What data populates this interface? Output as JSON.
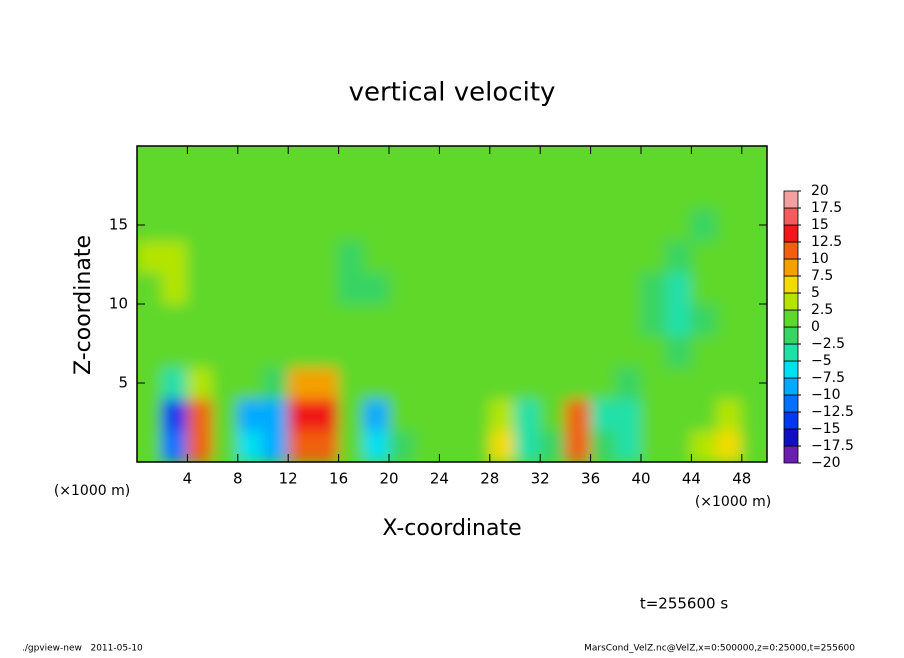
{
  "chart_data": {
    "type": "contour",
    "title": "vertical velocity",
    "x_label": "X-coordinate",
    "y_label": "Z-coordinate",
    "x_unit": "(×1000 m)",
    "x_unit_right": "(×1000 m)",
    "time_label": "t=255600 s",
    "footer_left": "./gpview-new   2011-05-10",
    "footer_right": "MarsCond_VelZ.nc@VelZ,x=0:500000,z=0:25000,t=255600",
    "xlim": [
      0,
      50
    ],
    "ylim": [
      0,
      20
    ],
    "xticks": [
      4,
      8,
      12,
      16,
      20,
      24,
      28,
      32,
      36,
      40,
      44,
      48
    ],
    "yticks": [
      5,
      10,
      15
    ],
    "x": [
      1,
      3,
      5,
      7,
      9,
      11,
      13,
      15,
      17,
      19,
      21,
      23,
      25,
      27,
      29,
      31,
      33,
      35,
      37,
      39,
      41,
      43,
      45,
      47,
      49
    ],
    "y": [
      1,
      3,
      5,
      7,
      9,
      11,
      13,
      15,
      17,
      19
    ],
    "z": [
      [
        0,
        -12,
        10,
        0,
        -6,
        -8,
        11,
        11,
        0,
        -6,
        -2,
        1,
        1,
        1,
        5,
        -4,
        -2,
        10,
        -2,
        -3,
        1,
        1,
        3,
        5,
        1
      ],
      [
        1,
        -13,
        11,
        1,
        -9,
        -9,
        13,
        13,
        1,
        -10,
        1,
        1,
        1,
        1,
        3,
        -3,
        1,
        11,
        -4,
        -4,
        1,
        1,
        1,
        3,
        1
      ],
      [
        1,
        -3,
        3,
        1,
        1,
        -2,
        8,
        8,
        1,
        1,
        1,
        1,
        1,
        1,
        1,
        1,
        1,
        2,
        1,
        -2,
        1,
        1,
        1,
        1,
        1
      ],
      [
        1,
        1,
        1,
        1,
        1,
        1,
        1,
        1,
        1,
        1,
        1,
        1,
        1,
        1,
        1,
        1,
        1,
        1,
        1,
        1,
        1,
        -1,
        1,
        1,
        1
      ],
      [
        1,
        1,
        1,
        1,
        1,
        1,
        1,
        1,
        1,
        1,
        1,
        1,
        1,
        1,
        1,
        1,
        1,
        1,
        1,
        1,
        -2,
        -3,
        -2,
        1,
        1
      ],
      [
        1,
        3,
        1,
        1,
        1,
        1,
        1,
        1,
        -1,
        -1,
        1,
        1,
        1,
        1,
        1,
        1,
        1,
        1,
        1,
        1,
        -1,
        -3,
        1,
        1,
        1
      ],
      [
        3,
        3,
        1,
        1,
        1,
        1,
        1,
        1,
        -1,
        1,
        1,
        1,
        1,
        1,
        1,
        1,
        1,
        1,
        1,
        1,
        1,
        -2,
        1,
        1,
        1
      ],
      [
        2,
        1,
        1,
        1,
        1,
        1,
        1,
        1,
        1,
        1,
        1,
        1,
        1,
        1,
        1,
        1,
        1,
        1,
        1,
        1,
        1,
        1,
        -1,
        1,
        1
      ],
      [
        1,
        1,
        1,
        1,
        1,
        1,
        1,
        1,
        1,
        1,
        1,
        1,
        1,
        1,
        1,
        1,
        1,
        1,
        1,
        1,
        1,
        1,
        1,
        2,
        1
      ],
      [
        1,
        1,
        1,
        1,
        1,
        1,
        1,
        1,
        1,
        1,
        1,
        1,
        1,
        1,
        1,
        1,
        1,
        1,
        1,
        1,
        1,
        1,
        1,
        1,
        1
      ]
    ],
    "colorbar": {
      "levels": [
        {
          "value": -20,
          "label": "−20"
        },
        {
          "value": -17.5,
          "label": "−17.5"
        },
        {
          "value": -15,
          "label": "−15"
        },
        {
          "value": -12.5,
          "label": "−12.5"
        },
        {
          "value": -10,
          "label": "−10"
        },
        {
          "value": -7.5,
          "label": "−7.5"
        },
        {
          "value": -5,
          "label": "−5"
        },
        {
          "value": -2.5,
          "label": "−2.5"
        },
        0,
        2.5,
        5,
        7.5,
        10,
        12.5,
        15,
        17.5,
        20
      ],
      "colors": [
        "#6a1fb0",
        "#1010c0",
        "#0038f0",
        "#0070ff",
        "#00aaff",
        "#00e0f0",
        "#20e0a8",
        "#38d464",
        "#5ed82c",
        "#b4e400",
        "#f2dc00",
        "#f5a000",
        "#f06010",
        "#f01818",
        "#f25c5c",
        "#f5a0a0"
      ]
    }
  }
}
